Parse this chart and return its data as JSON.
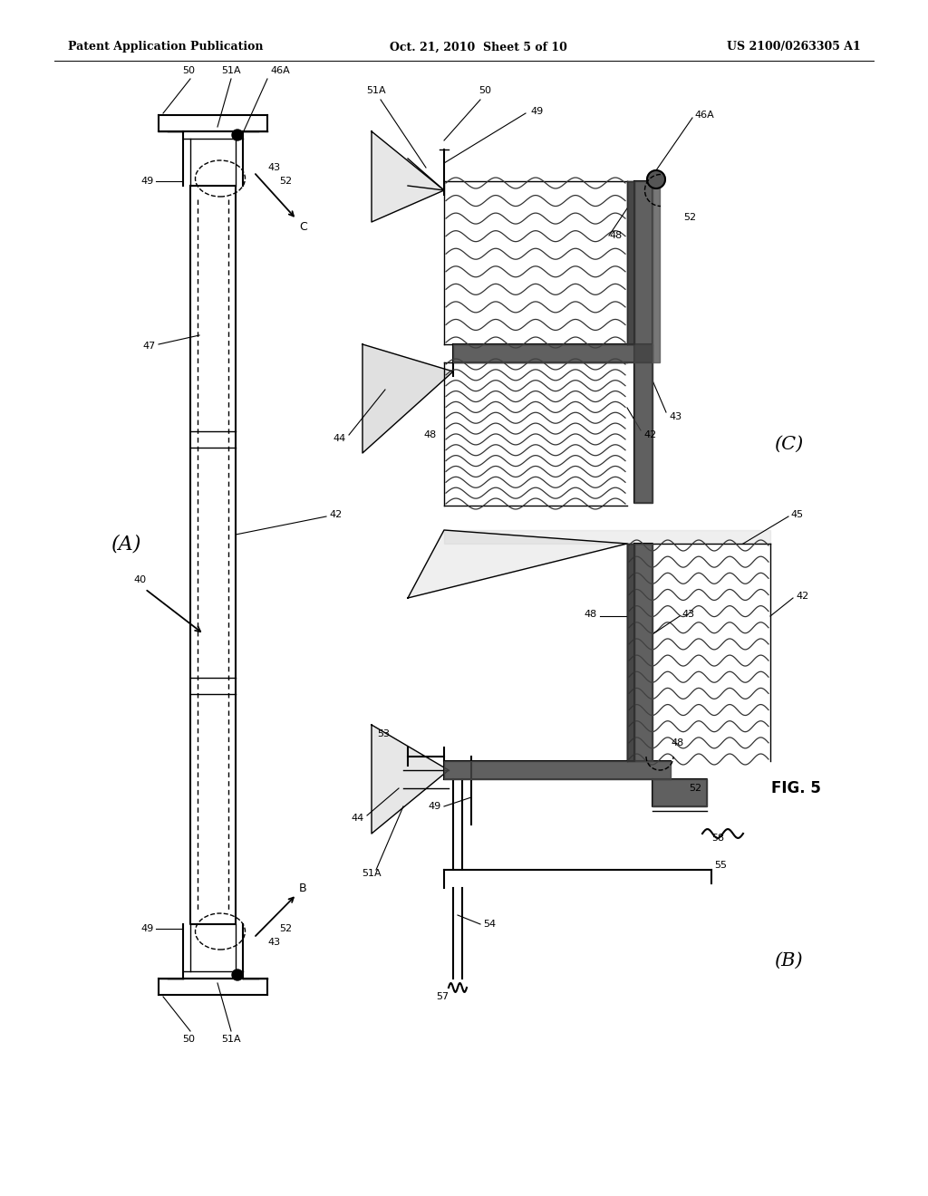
{
  "bg_color": "#ffffff",
  "header_left": "Patent Application Publication",
  "header_center": "Oct. 21, 2010  Sheet 5 of 10",
  "header_right": "US 2100/0263305 A1",
  "fig_label": "FIG. 5"
}
